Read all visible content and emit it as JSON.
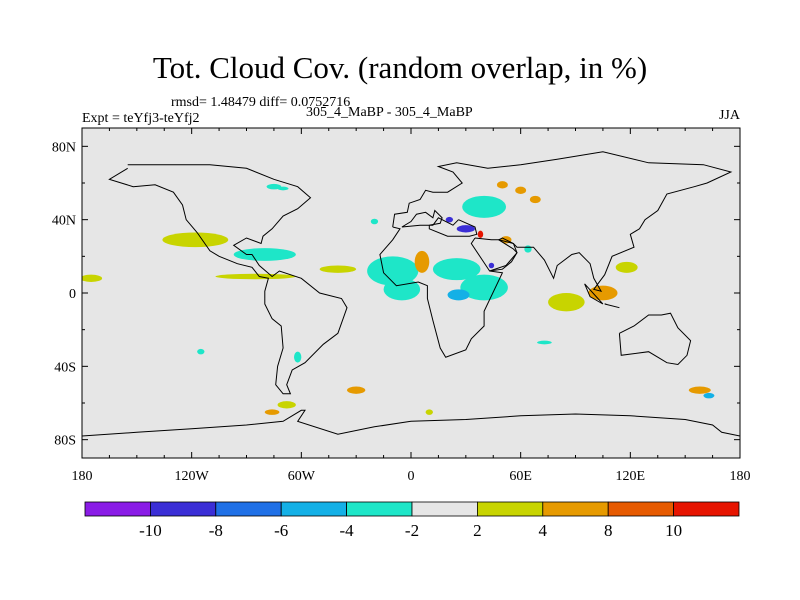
{
  "title": "Tot. Cloud Cov. (random overlap, in %)",
  "rmsd_line": "rmsd= 1.48479 diff= 0.0752716",
  "expt_line": "Expt = teYfj3-teYfj2",
  "center_line": "305_4_MaBP - 305_4_MaBP",
  "season": "JJA",
  "chart_data": {
    "type": "heatmap",
    "title": "Tot. Cloud Cov. (random overlap, in %)",
    "projection": "cylindrical equidistant",
    "xlim": [
      -180,
      180
    ],
    "ylim": [
      -90,
      90
    ],
    "x_ticks": [
      {
        "value": -180,
        "label": "180"
      },
      {
        "value": -120,
        "label": "120W"
      },
      {
        "value": -60,
        "label": "60W"
      },
      {
        "value": 0,
        "label": "0"
      },
      {
        "value": 60,
        "label": "60E"
      },
      {
        "value": 120,
        "label": "120E"
      },
      {
        "value": 180,
        "label": "180"
      }
    ],
    "y_ticks": [
      {
        "value": 80,
        "label": "80N"
      },
      {
        "value": 40,
        "label": "40N"
      },
      {
        "value": 0,
        "label": "0"
      },
      {
        "value": -40,
        "label": "40S"
      },
      {
        "value": -80,
        "label": "80S"
      }
    ],
    "colorbar": {
      "levels": [
        -10,
        -8,
        -6,
        -4,
        -2,
        2,
        4,
        8,
        10
      ],
      "level_labels": [
        "-10",
        "-8",
        "-6",
        "-4",
        "-2",
        "2",
        "4",
        "8",
        "10"
      ],
      "colors": [
        "#8a1ce6",
        "#3b2ed6",
        "#1f70e6",
        "#14b0e6",
        "#1ee6c8",
        "#e6e6e6",
        "#c8d400",
        "#e69a00",
        "#e65a00",
        "#e61400"
      ]
    },
    "background_color": "#e6e6e6",
    "regions": [
      {
        "lon": -118,
        "lat": 29,
        "rx": 18,
        "ry": 4,
        "value": 3
      },
      {
        "lon": -175,
        "lat": 8,
        "rx": 6,
        "ry": 2,
        "value": 3
      },
      {
        "lon": -80,
        "lat": 21,
        "rx": 17,
        "ry": 3.5,
        "value": -3
      },
      {
        "lon": -85,
        "lat": 9,
        "rx": 22,
        "ry": 1.5,
        "value": 3
      },
      {
        "lon": -40,
        "lat": 13,
        "rx": 10,
        "ry": 2,
        "value": 3
      },
      {
        "lon": -75,
        "lat": 58,
        "rx": 4,
        "ry": 1.5,
        "value": -3
      },
      {
        "lon": -10,
        "lat": 12,
        "rx": 14,
        "ry": 8,
        "value": -3
      },
      {
        "lon": -5,
        "lat": 2,
        "rx": 10,
        "ry": 6,
        "value": -3
      },
      {
        "lon": 6,
        "lat": 17,
        "rx": 4,
        "ry": 6,
        "value": 5
      },
      {
        "lon": 25,
        "lat": 13,
        "rx": 13,
        "ry": 6,
        "value": -3
      },
      {
        "lon": 40,
        "lat": 3,
        "rx": 13,
        "ry": 7,
        "value": -3
      },
      {
        "lon": 26,
        "lat": -1,
        "rx": 6,
        "ry": 3,
        "value": -5
      },
      {
        "lon": 40,
        "lat": 47,
        "rx": 12,
        "ry": 6,
        "value": -3
      },
      {
        "lon": 30,
        "lat": 35,
        "rx": 5,
        "ry": 2,
        "value": -9
      },
      {
        "lon": 21,
        "lat": 40,
        "rx": 2,
        "ry": 1.5,
        "value": -9
      },
      {
        "lon": 50,
        "lat": 59,
        "rx": 3,
        "ry": 2,
        "value": 5
      },
      {
        "lon": 60,
        "lat": 56,
        "rx": 3,
        "ry": 2,
        "value": 5
      },
      {
        "lon": 68,
        "lat": 51,
        "rx": 3,
        "ry": 2,
        "value": 5
      },
      {
        "lon": 52,
        "lat": 29,
        "rx": 3,
        "ry": 2,
        "value": 5
      },
      {
        "lon": 38,
        "lat": 32,
        "rx": 1.5,
        "ry": 2,
        "value": 11
      },
      {
        "lon": 44,
        "lat": 15,
        "rx": 1.5,
        "ry": 1.5,
        "value": -9
      },
      {
        "lon": 64,
        "lat": 24,
        "rx": 2,
        "ry": 2,
        "value": -3
      },
      {
        "lon": 85,
        "lat": -5,
        "rx": 10,
        "ry": 5,
        "value": 3
      },
      {
        "lon": 105,
        "lat": 0,
        "rx": 8,
        "ry": 4,
        "value": 5
      },
      {
        "lon": 118,
        "lat": 14,
        "rx": 6,
        "ry": 3,
        "value": 3
      },
      {
        "lon": -62,
        "lat": -35,
        "rx": 2,
        "ry": 3,
        "value": -3
      },
      {
        "lon": -68,
        "lat": -61,
        "rx": 5,
        "ry": 2,
        "value": 3
      },
      {
        "lon": -76,
        "lat": -65,
        "rx": 4,
        "ry": 1.5,
        "value": 5
      },
      {
        "lon": -30,
        "lat": -53,
        "rx": 5,
        "ry": 2,
        "value": 5
      },
      {
        "lon": -20,
        "lat": 39,
        "rx": 2,
        "ry": 1.5,
        "value": -3
      },
      {
        "lon": 158,
        "lat": -53,
        "rx": 6,
        "ry": 2,
        "value": 5
      },
      {
        "lon": 163,
        "lat": -56,
        "rx": 3,
        "ry": 1.5,
        "value": -5
      },
      {
        "lon": 73,
        "lat": -27,
        "rx": 4,
        "ry": 1,
        "value": -3
      },
      {
        "lon": 10,
        "lat": -65,
        "rx": 2,
        "ry": 1.5,
        "value": 3
      },
      {
        "lon": -115,
        "lat": -32,
        "rx": 2,
        "ry": 1.5,
        "value": -3
      },
      {
        "lon": -70,
        "lat": 57,
        "rx": 3,
        "ry": 1,
        "value": -3
      }
    ],
    "coastlines": [
      [
        [
          -155,
          68
        ],
        [
          -165,
          62
        ],
        [
          -152,
          58
        ],
        [
          -140,
          59
        ],
        [
          -130,
          55
        ],
        [
          -125,
          48
        ],
        [
          -123,
          40
        ],
        [
          -117,
          33
        ],
        [
          -110,
          23
        ],
        [
          -105,
          20
        ],
        [
          -95,
          16
        ],
        [
          -87,
          14
        ],
        [
          -83,
          9
        ],
        [
          -78,
          8
        ],
        [
          -80,
          1
        ],
        [
          -80,
          -6
        ],
        [
          -76,
          -14
        ],
        [
          -71,
          -18
        ],
        [
          -70,
          -30
        ],
        [
          -73,
          -40
        ],
        [
          -74,
          -50
        ],
        [
          -70,
          -55
        ],
        [
          -66,
          -55
        ],
        [
          -68,
          -50
        ],
        [
          -65,
          -42
        ],
        [
          -58,
          -38
        ],
        [
          -48,
          -28
        ],
        [
          -40,
          -22
        ],
        [
          -35,
          -8
        ],
        [
          -38,
          -3
        ],
        [
          -50,
          0
        ],
        [
          -60,
          8
        ],
        [
          -72,
          12
        ],
        [
          -76,
          9
        ],
        [
          -83,
          15
        ],
        [
          -87,
          21
        ],
        [
          -90,
          21
        ],
        [
          -97,
          26
        ],
        [
          -90,
          30
        ],
        [
          -82,
          27
        ],
        [
          -81,
          31
        ],
        [
          -76,
          35
        ],
        [
          -70,
          42
        ],
        [
          -62,
          46
        ],
        [
          -55,
          52
        ],
        [
          -62,
          58
        ],
        [
          -75,
          62
        ],
        [
          -90,
          68
        ],
        [
          -110,
          70
        ],
        [
          -130,
          70
        ],
        [
          -145,
          70
        ],
        [
          -155,
          70
        ]
      ],
      [
        [
          -10,
          36
        ],
        [
          -9,
          43
        ],
        [
          -2,
          44
        ],
        [
          -1,
          49
        ],
        [
          5,
          51
        ],
        [
          8,
          56
        ],
        [
          12,
          55
        ],
        [
          20,
          55
        ],
        [
          28,
          60
        ],
        [
          23,
          66
        ],
        [
          15,
          69
        ],
        [
          25,
          71
        ],
        [
          42,
          68
        ],
        [
          60,
          70
        ],
        [
          80,
          73
        ],
        [
          105,
          77
        ],
        [
          130,
          71
        ],
        [
          160,
          70
        ],
        [
          175,
          66
        ],
        [
          162,
          60
        ],
        [
          155,
          58
        ],
        [
          140,
          54
        ],
        [
          135,
          45
        ],
        [
          128,
          40
        ],
        [
          125,
          35
        ],
        [
          120,
          32
        ],
        [
          122,
          25
        ],
        [
          110,
          20
        ],
        [
          106,
          10
        ],
        [
          100,
          2
        ],
        [
          104,
          1
        ],
        [
          100,
          8
        ],
        [
          98,
          16
        ],
        [
          92,
          22
        ],
        [
          88,
          21
        ],
        [
          80,
          15
        ],
        [
          78,
          8
        ],
        [
          73,
          18
        ],
        [
          67,
          25
        ],
        [
          58,
          25
        ],
        [
          56,
          27
        ],
        [
          50,
          30
        ],
        [
          48,
          29
        ],
        [
          56,
          24
        ],
        [
          58,
          22
        ],
        [
          52,
          15
        ],
        [
          43,
          12
        ],
        [
          50,
          11
        ],
        [
          40,
          -10
        ],
        [
          40,
          -18
        ],
        [
          33,
          -25
        ],
        [
          30,
          -31
        ],
        [
          19,
          -35
        ],
        [
          16,
          -30
        ],
        [
          12,
          -15
        ],
        [
          9,
          -3
        ],
        [
          9,
          4
        ],
        [
          4,
          6
        ],
        [
          -8,
          4
        ],
        [
          -15,
          11
        ],
        [
          -17,
          21
        ],
        [
          -10,
          29
        ],
        [
          -6,
          35
        ],
        [
          -10,
          36
        ]
      ],
      [
        [
          26,
          40
        ],
        [
          35,
          36
        ],
        [
          36,
          32
        ],
        [
          32,
          31
        ],
        [
          20,
          31
        ],
        [
          10,
          35
        ],
        [
          10,
          37
        ],
        [
          16,
          38
        ],
        [
          17,
          41
        ],
        [
          13,
          45
        ],
        [
          12,
          41
        ],
        [
          8,
          44
        ],
        [
          3,
          43
        ],
        [
          0,
          39
        ],
        [
          -5,
          36
        ],
        [
          5,
          37
        ],
        [
          12,
          37
        ],
        [
          15,
          41
        ],
        [
          23,
          37
        ],
        [
          26,
          40
        ]
      ],
      [
        [
          35,
          30
        ],
        [
          33,
          27
        ],
        [
          39,
          18
        ],
        [
          43,
          12
        ],
        [
          50,
          13
        ],
        [
          55,
          17
        ],
        [
          58,
          22
        ],
        [
          56,
          27
        ],
        [
          48,
          29
        ],
        [
          44,
          29
        ],
        [
          35,
          30
        ]
      ],
      [
        [
          114,
          -22
        ],
        [
          122,
          -18
        ],
        [
          130,
          -12
        ],
        [
          137,
          -12
        ],
        [
          142,
          -11
        ],
        [
          146,
          -19
        ],
        [
          153,
          -26
        ],
        [
          151,
          -34
        ],
        [
          146,
          -39
        ],
        [
          140,
          -38
        ],
        [
          135,
          -35
        ],
        [
          130,
          -32
        ],
        [
          115,
          -34
        ],
        [
          114,
          -22
        ]
      ],
      [
        [
          95,
          5
        ],
        [
          105,
          -6
        ],
        [
          98,
          -2
        ],
        [
          95,
          5
        ]
      ],
      [
        [
          110,
          -7
        ],
        [
          114,
          -8
        ],
        [
          106,
          -6
        ],
        [
          110,
          -7
        ]
      ],
      [
        [
          -180,
          -78
        ],
        [
          -150,
          -76
        ],
        [
          -120,
          -74
        ],
        [
          -90,
          -72
        ],
        [
          -70,
          -70
        ],
        [
          -60,
          -64
        ],
        [
          -58,
          -64
        ],
        [
          -62,
          -70
        ],
        [
          -40,
          -77
        ],
        [
          -20,
          -73
        ],
        [
          0,
          -70
        ],
        [
          30,
          -69
        ],
        [
          60,
          -67
        ],
        [
          90,
          -66
        ],
        [
          120,
          -67
        ],
        [
          150,
          -69
        ],
        [
          165,
          -72
        ],
        [
          170,
          -76
        ],
        [
          180,
          -78
        ]
      ]
    ]
  }
}
